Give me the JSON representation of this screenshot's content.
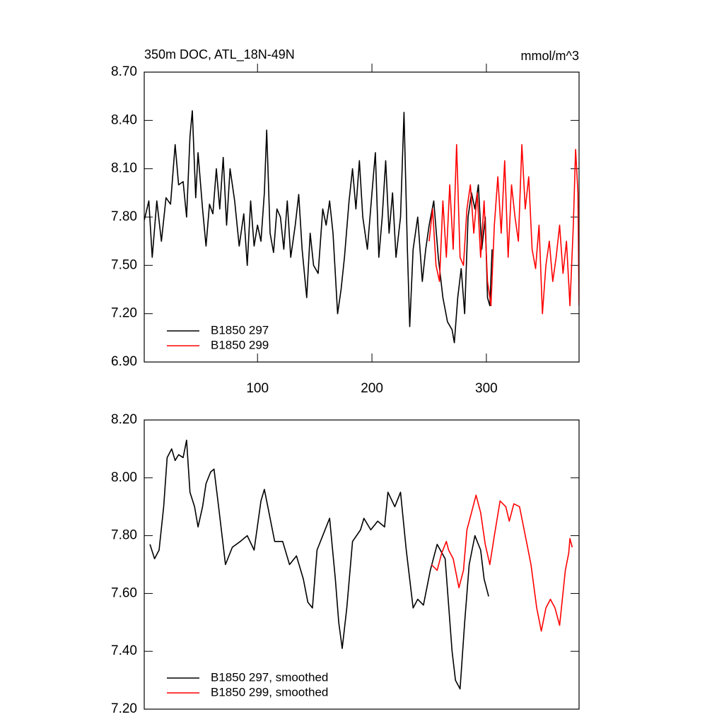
{
  "chart_data": [
    {
      "type": "line",
      "title": "350m DOC, ATL_18N-49N",
      "units": "mmol/m^3",
      "xlim": [
        1,
        381
      ],
      "xticks": [
        100,
        200,
        300
      ],
      "ylim": [
        6.9,
        8.7
      ],
      "yticks": [
        {
          "value": 6.9,
          "label": "6.90"
        },
        {
          "value": 7.2,
          "label": "7.20"
        },
        {
          "value": 7.5,
          "label": "7.50"
        },
        {
          "value": 7.8,
          "label": "7.80"
        },
        {
          "value": 8.1,
          "label": "8.10"
        },
        {
          "value": 8.4,
          "label": "8.40"
        },
        {
          "value": 8.7,
          "label": "8.70"
        }
      ],
      "legend": "lower left",
      "series": [
        {
          "name": "B1850 297",
          "color": "#000000",
          "x": [
            1,
            5,
            8,
            12,
            16,
            20,
            24,
            28,
            31,
            35,
            38,
            41,
            43,
            46,
            48,
            52,
            55,
            58,
            61,
            64,
            67,
            70,
            73,
            76,
            80,
            84,
            88,
            91,
            94,
            97,
            100,
            103,
            106,
            108,
            111,
            114,
            117,
            120,
            123,
            126,
            129,
            133,
            136,
            139,
            143,
            146,
            149,
            153,
            157,
            160,
            163,
            166,
            170,
            173,
            176,
            180,
            183,
            186,
            189,
            192,
            196,
            200,
            203,
            206,
            209,
            212,
            215,
            218,
            221,
            225,
            228,
            231,
            233,
            236,
            240,
            244,
            247,
            250,
            254,
            258,
            262,
            266,
            270,
            272,
            275,
            278,
            281,
            284,
            287,
            290,
            293,
            296,
            299,
            301,
            303,
            305
          ],
          "values": [
            7.78,
            7.9,
            7.55,
            7.9,
            7.65,
            7.92,
            7.88,
            8.25,
            8.0,
            8.02,
            7.8,
            8.3,
            8.46,
            7.92,
            8.2,
            7.85,
            7.62,
            7.88,
            7.82,
            8.1,
            7.85,
            8.17,
            7.75,
            8.1,
            7.9,
            7.62,
            7.82,
            7.5,
            7.9,
            7.62,
            7.75,
            7.65,
            7.95,
            8.34,
            7.7,
            7.58,
            7.85,
            7.8,
            7.6,
            7.9,
            7.55,
            7.75,
            7.94,
            7.6,
            7.3,
            7.7,
            7.5,
            7.45,
            7.85,
            7.75,
            7.9,
            7.7,
            7.2,
            7.35,
            7.55,
            7.9,
            8.1,
            7.85,
            8.15,
            7.8,
            7.6,
            7.95,
            8.2,
            7.55,
            7.8,
            8.15,
            7.7,
            7.95,
            7.55,
            7.8,
            8.45,
            7.6,
            7.12,
            7.6,
            7.8,
            7.4,
            7.6,
            7.75,
            7.9,
            7.55,
            7.3,
            7.15,
            7.1,
            7.02,
            7.3,
            7.48,
            7.2,
            7.8,
            7.95,
            7.85,
            8.0,
            7.6,
            7.8,
            7.3,
            7.25,
            7.6
          ]
        },
        {
          "name": "B1850 299",
          "color": "#ff0000",
          "x": [
            250,
            253,
            256,
            259,
            262,
            265,
            268,
            271,
            274,
            277,
            280,
            283,
            286,
            289,
            292,
            295,
            298,
            301,
            304,
            307,
            310,
            313,
            316,
            319,
            322,
            325,
            328,
            331,
            334,
            337,
            340,
            343,
            346,
            349,
            352,
            355,
            358,
            361,
            364,
            367,
            370,
            373,
            376,
            378,
            380,
            381
          ],
          "values": [
            7.65,
            7.85,
            7.5,
            7.4,
            7.9,
            7.55,
            8.0,
            7.6,
            8.25,
            7.55,
            7.5,
            7.85,
            8.0,
            7.7,
            7.95,
            7.55,
            7.9,
            7.4,
            7.25,
            7.75,
            8.05,
            7.7,
            8.15,
            7.55,
            8.0,
            7.8,
            7.65,
            8.25,
            7.85,
            8.05,
            7.6,
            7.48,
            7.75,
            7.2,
            7.5,
            7.65,
            7.4,
            7.55,
            7.75,
            7.45,
            7.65,
            7.25,
            7.75,
            8.22,
            7.95,
            7.25
          ]
        }
      ]
    },
    {
      "type": "line",
      "xlim": [
        1,
        381
      ],
      "ylim": [
        7.2,
        8.2
      ],
      "yticks": [
        {
          "value": 7.2,
          "label": "7.20"
        },
        {
          "value": 7.4,
          "label": "7.40"
        },
        {
          "value": 7.6,
          "label": "7.60"
        },
        {
          "value": 7.8,
          "label": "7.80"
        },
        {
          "value": 8.0,
          "label": "8.00"
        },
        {
          "value": 8.2,
          "label": "8.20"
        }
      ],
      "legend": "lower left",
      "series": [
        {
          "name": "B1850 297, smoothed",
          "color": "#000000",
          "x": [
            6,
            10,
            14,
            18,
            21,
            25,
            28,
            31,
            35,
            38,
            41,
            45,
            48,
            52,
            55,
            59,
            62,
            66,
            72,
            78,
            85,
            91,
            97,
            103,
            106,
            109,
            115,
            122,
            128,
            134,
            140,
            144,
            148,
            152,
            159,
            163,
            168,
            171,
            174,
            178,
            183,
            190,
            193,
            199,
            205,
            211,
            214,
            220,
            225,
            230,
            236,
            240,
            245,
            251,
            257,
            264,
            270,
            273,
            277,
            281,
            285,
            290,
            295,
            298,
            302
          ],
          "values": [
            7.77,
            7.72,
            7.75,
            7.9,
            8.07,
            8.1,
            8.06,
            8.08,
            8.07,
            8.13,
            7.95,
            7.9,
            7.83,
            7.9,
            7.98,
            8.02,
            8.03,
            7.9,
            7.7,
            7.76,
            7.78,
            7.8,
            7.75,
            7.92,
            7.96,
            7.9,
            7.78,
            7.78,
            7.7,
            7.73,
            7.65,
            7.57,
            7.55,
            7.75,
            7.82,
            7.86,
            7.65,
            7.5,
            7.41,
            7.55,
            7.78,
            7.82,
            7.86,
            7.82,
            7.85,
            7.83,
            7.95,
            7.9,
            7.95,
            7.75,
            7.55,
            7.58,
            7.56,
            7.68,
            7.77,
            7.72,
            7.4,
            7.3,
            7.27,
            7.5,
            7.7,
            7.8,
            7.75,
            7.65,
            7.59
          ]
        },
        {
          "name": "B1850 299, smoothed",
          "color": "#ff0000",
          "x": [
            252,
            257,
            261,
            265,
            267,
            271,
            276,
            280,
            283,
            287,
            291,
            295,
            299,
            303,
            307,
            312,
            317,
            320,
            324,
            329,
            335,
            339,
            344,
            348,
            352,
            356,
            360,
            364,
            369,
            372,
            373,
            375
          ],
          "values": [
            7.7,
            7.68,
            7.74,
            7.78,
            7.75,
            7.72,
            7.62,
            7.68,
            7.82,
            7.88,
            7.94,
            7.88,
            7.77,
            7.7,
            7.8,
            7.92,
            7.9,
            7.85,
            7.91,
            7.9,
            7.78,
            7.7,
            7.55,
            7.47,
            7.55,
            7.58,
            7.55,
            7.49,
            7.68,
            7.74,
            7.79,
            7.76
          ]
        }
      ]
    }
  ]
}
